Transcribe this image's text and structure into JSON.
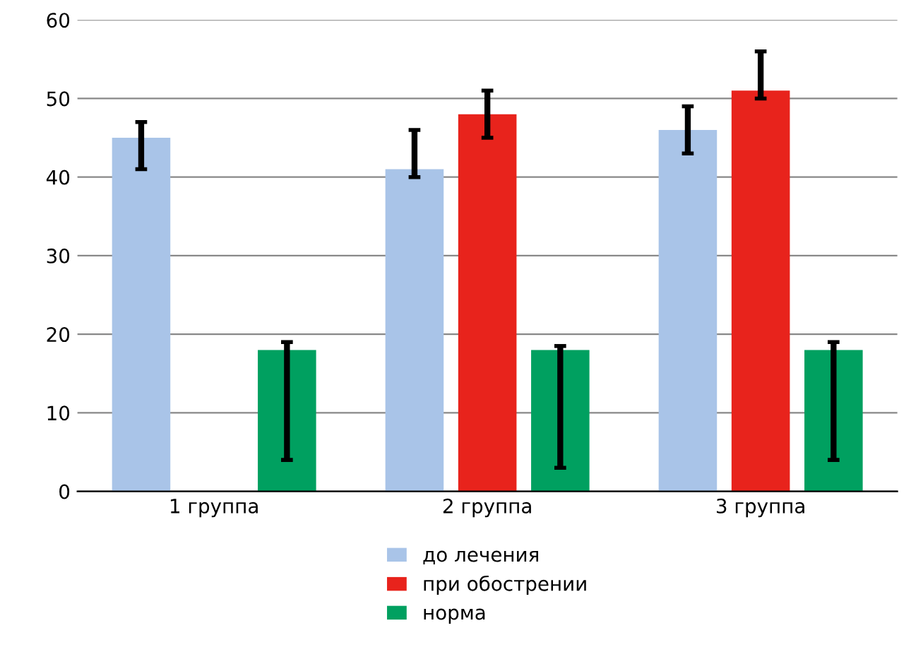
{
  "chart_data": {
    "type": "bar",
    "categories": [
      "1 группа",
      "2 группа",
      "3 группа"
    ],
    "series": [
      {
        "name": "до лечения",
        "color": "#a9c4e8",
        "values": [
          45,
          41,
          46
        ],
        "errors": [
          [
            41,
            47
          ],
          [
            40,
            46
          ],
          [
            43,
            49
          ]
        ]
      },
      {
        "name": "при обострении",
        "color": "#e8231c",
        "values": [
          null,
          48,
          51
        ],
        "errors": [
          null,
          [
            45,
            51
          ],
          [
            50,
            56
          ]
        ]
      },
      {
        "name": "норма",
        "color": "#00a060",
        "values": [
          18,
          18,
          18
        ],
        "errors": [
          [
            4,
            19
          ],
          [
            3,
            18.5
          ],
          [
            4,
            19
          ]
        ]
      }
    ],
    "ylim": [
      0,
      60
    ],
    "yticks": [
      0,
      10,
      20,
      30,
      40,
      50,
      60
    ],
    "grid": "y",
    "legend": "bottom"
  }
}
